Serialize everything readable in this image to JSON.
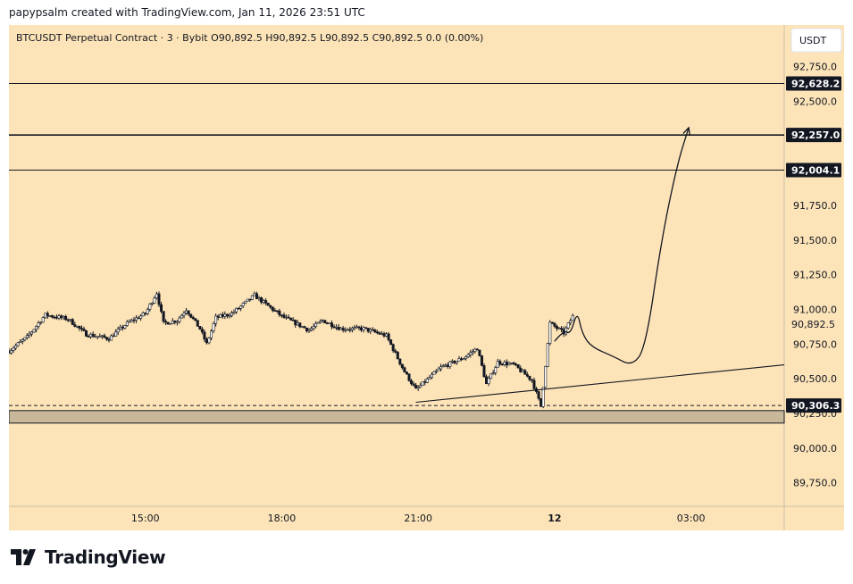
{
  "header": {
    "credit": "papypsalm created with TradingView.com, Jan 11, 2026 23:51 UTC"
  },
  "legend": {
    "symbol": "BTCUSDT Perpetual Contract · 3 · Bybit",
    "open": "O90,892.5",
    "high": "H90,892.5",
    "low": "L90,892.5",
    "close": "C90,892.5",
    "change": "0.0 (0.00%)"
  },
  "currency_button": "USDT",
  "brand": {
    "name": "TradingView",
    "logo_icon": "tradingview-logo-icon"
  },
  "colors": {
    "background": "#fde4b8",
    "axis_background": "#fde4b8",
    "candle": "#131722",
    "level_line": "#131722",
    "price_tag": "#131722",
    "zone_fill": "#c9b79a",
    "text": "#131722"
  },
  "chart_data": {
    "type": "candlestick",
    "title": "",
    "xlabel": "",
    "ylabel": "",
    "ylim": [
      89580,
      93050
    ],
    "y_ticks": [
      "89,750.0",
      "90,000.0",
      "90,250.0",
      "90,500.0",
      "90,750.0",
      "91,000.0",
      "91,250.0",
      "91,500.0",
      "91,750.0",
      "92,000.0",
      "92,250.0",
      "92,500.0",
      "92,750.0"
    ],
    "y_tick_values": [
      89750,
      90000,
      90250,
      90500,
      90750,
      91000,
      91250,
      91500,
      91750,
      92000,
      92250,
      92500,
      92750
    ],
    "x_ticks": [
      "15:00",
      "18:00",
      "21:00",
      "12",
      "03:00"
    ],
    "x_tick_hours": [
      15,
      18,
      21,
      24,
      27
    ],
    "x_tick_bold": [
      false,
      false,
      false,
      true,
      false
    ],
    "x_range_hours": [
      12.0,
      29.05
    ],
    "bar_minutes": 3,
    "last_price": 90892.5,
    "last_price_label": "90,892.5",
    "price_path_keypoints": [
      [
        12.0,
        90700
      ],
      [
        12.4,
        90800
      ],
      [
        12.8,
        90960
      ],
      [
        13.3,
        90930
      ],
      [
        13.7,
        90820
      ],
      [
        14.2,
        90790
      ],
      [
        14.6,
        90900
      ],
      [
        15.0,
        90970
      ],
      [
        15.25,
        91120
      ],
      [
        15.4,
        90900
      ],
      [
        15.7,
        90920
      ],
      [
        15.9,
        91000
      ],
      [
        16.2,
        90860
      ],
      [
        16.35,
        90750
      ],
      [
        16.55,
        90940
      ],
      [
        16.9,
        90970
      ],
      [
        17.4,
        91100
      ],
      [
        17.6,
        91050
      ],
      [
        18.0,
        90950
      ],
      [
        18.6,
        90850
      ],
      [
        18.9,
        90920
      ],
      [
        19.3,
        90860
      ],
      [
        19.8,
        90860
      ],
      [
        20.3,
        90810
      ],
      [
        20.7,
        90550
      ],
      [
        20.95,
        90420
      ],
      [
        21.5,
        90580
      ],
      [
        22.0,
        90650
      ],
      [
        22.3,
        90720
      ],
      [
        22.5,
        90460
      ],
      [
        22.75,
        90620
      ],
      [
        23.1,
        90600
      ],
      [
        23.5,
        90490
      ],
      [
        23.7,
        90300
      ],
      [
        23.9,
        90900
      ],
      [
        24.2,
        90830
      ],
      [
        24.4,
        90950
      ]
    ],
    "hlines": [
      {
        "value": 92628.2,
        "label": "92,628.2"
      },
      {
        "value": 92257.0,
        "label": "92,257.0"
      },
      {
        "value": 92004.1,
        "label": "92,004.1"
      }
    ],
    "dashed_line": {
      "value": 90306.3,
      "label": "90,306.3"
    },
    "zone": {
      "from": 90270,
      "to": 90180
    },
    "trendline": {
      "from": [
        20.95,
        90330
      ],
      "to": [
        29.05,
        90600
      ]
    },
    "projection_path": [
      [
        24.0,
        90770
      ],
      [
        24.2,
        90850
      ],
      [
        24.35,
        90820
      ],
      [
        24.5,
        90990
      ],
      [
        24.6,
        90830
      ],
      [
        24.8,
        90730
      ],
      [
        25.3,
        90660
      ],
      [
        25.7,
        90590
      ],
      [
        26.0,
        90720
      ],
      [
        26.35,
        91500
      ],
      [
        26.7,
        92050
      ],
      [
        26.95,
        92310
      ]
    ]
  }
}
